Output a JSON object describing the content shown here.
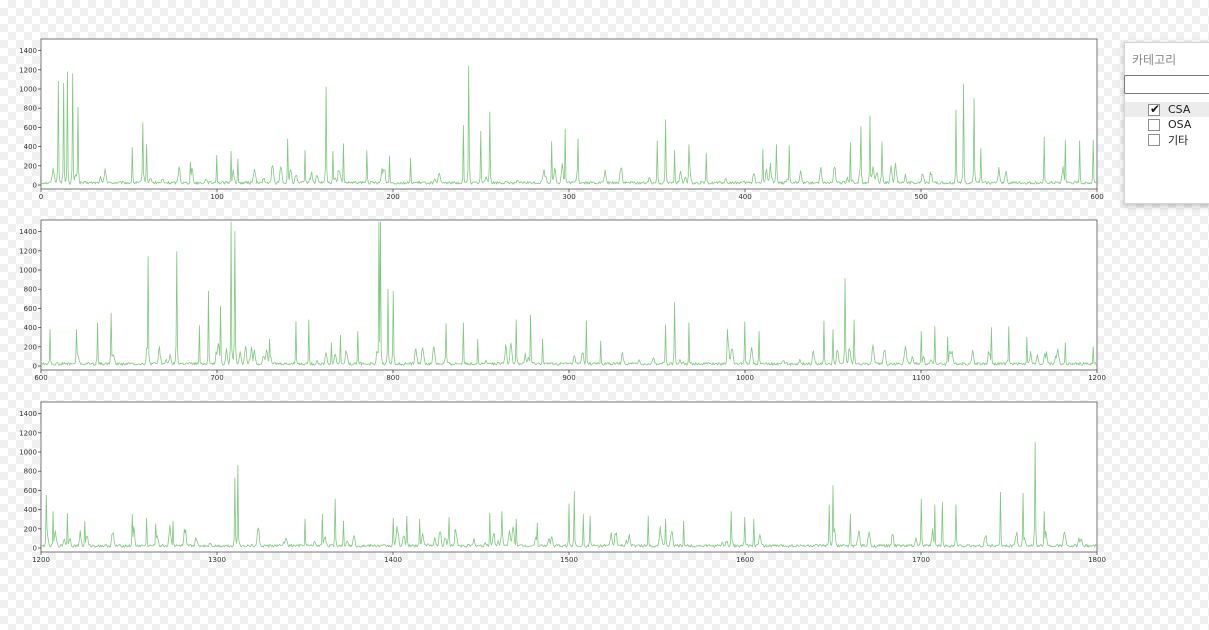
{
  "chart_data": [
    {
      "type": "line",
      "x_range": [
        0,
        600
      ],
      "ylim": [
        0,
        1500
      ],
      "xticks": [
        "0",
        "100",
        "200",
        "300",
        "400",
        "500",
        "600"
      ],
      "yticks": [
        "0",
        "200",
        "400",
        "600",
        "800",
        "1000",
        "1200",
        "1400"
      ],
      "line_color": "#7fc97f",
      "peaks": [
        [
          10,
          1080
        ],
        [
          13,
          1060
        ],
        [
          15,
          1180
        ],
        [
          18,
          1160
        ],
        [
          21,
          810
        ],
        [
          52,
          390
        ],
        [
          58,
          650
        ],
        [
          60,
          420
        ],
        [
          85,
          240
        ],
        [
          100,
          310
        ],
        [
          108,
          350
        ],
        [
          112,
          270
        ],
        [
          140,
          480
        ],
        [
          150,
          360
        ],
        [
          162,
          1020
        ],
        [
          166,
          350
        ],
        [
          172,
          430
        ],
        [
          185,
          360
        ],
        [
          198,
          300
        ],
        [
          210,
          280
        ],
        [
          240,
          620
        ],
        [
          243,
          1240
        ],
        [
          250,
          560
        ],
        [
          255,
          760
        ],
        [
          290,
          450
        ],
        [
          298,
          580
        ],
        [
          305,
          480
        ],
        [
          350,
          460
        ],
        [
          355,
          680
        ],
        [
          360,
          360
        ],
        [
          368,
          420
        ],
        [
          378,
          330
        ],
        [
          410,
          370
        ],
        [
          418,
          420
        ],
        [
          425,
          410
        ],
        [
          460,
          440
        ],
        [
          466,
          610
        ],
        [
          471,
          720
        ],
        [
          478,
          450
        ],
        [
          520,
          780
        ],
        [
          524,
          1050
        ],
        [
          530,
          900
        ],
        [
          534,
          380
        ],
        [
          570,
          500
        ],
        [
          582,
          470
        ],
        [
          590,
          460
        ],
        [
          598,
          470
        ]
      ]
    },
    {
      "type": "line",
      "x_range": [
        600,
        1200
      ],
      "ylim": [
        0,
        1500
      ],
      "xticks": [
        "600",
        "700",
        "800",
        "900",
        "1000",
        "1100",
        "1200"
      ],
      "yticks": [
        "0",
        "200",
        "400",
        "600",
        "800",
        "1000",
        "1200",
        "1400"
      ],
      "line_color": "#7fc97f",
      "peaks": [
        [
          605,
          380
        ],
        [
          620,
          380
        ],
        [
          632,
          450
        ],
        [
          640,
          550
        ],
        [
          661,
          1140
        ],
        [
          677,
          1190
        ],
        [
          690,
          420
        ],
        [
          695,
          780
        ],
        [
          702,
          620
        ],
        [
          708,
          1500
        ],
        [
          710,
          1400
        ],
        [
          730,
          280
        ],
        [
          745,
          460
        ],
        [
          752,
          480
        ],
        [
          765,
          240
        ],
        [
          770,
          320
        ],
        [
          780,
          360
        ],
        [
          792,
          1500
        ],
        [
          793,
          1500
        ],
        [
          797,
          800
        ],
        [
          800,
          780
        ],
        [
          830,
          440
        ],
        [
          840,
          450
        ],
        [
          848,
          280
        ],
        [
          870,
          480
        ],
        [
          878,
          530
        ],
        [
          885,
          280
        ],
        [
          910,
          470
        ],
        [
          918,
          260
        ],
        [
          955,
          430
        ],
        [
          960,
          660
        ],
        [
          968,
          450
        ],
        [
          990,
          380
        ],
        [
          1000,
          460
        ],
        [
          1008,
          360
        ],
        [
          1045,
          470
        ],
        [
          1050,
          380
        ],
        [
          1057,
          910
        ],
        [
          1062,
          480
        ],
        [
          1100,
          360
        ],
        [
          1108,
          410
        ],
        [
          1115,
          300
        ],
        [
          1140,
          400
        ],
        [
          1150,
          410
        ],
        [
          1160,
          300
        ],
        [
          1182,
          240
        ],
        [
          1198,
          200
        ]
      ]
    },
    {
      "type": "line",
      "x_range": [
        1200,
        1800
      ],
      "ylim": [
        0,
        1500
      ],
      "xticks": [
        "1200",
        "1300",
        "1400",
        "1500",
        "1600",
        "1700",
        "1800"
      ],
      "yticks": [
        "0",
        "200",
        "400",
        "600",
        "800",
        "1000",
        "1200",
        "1400"
      ],
      "line_color": "#7fc97f",
      "peaks": [
        [
          1203,
          550
        ],
        [
          1207,
          380
        ],
        [
          1215,
          360
        ],
        [
          1225,
          280
        ],
        [
          1252,
          350
        ],
        [
          1260,
          310
        ],
        [
          1265,
          250
        ],
        [
          1275,
          280
        ],
        [
          1310,
          730
        ],
        [
          1312,
          860
        ],
        [
          1350,
          300
        ],
        [
          1360,
          350
        ],
        [
          1367,
          510
        ],
        [
          1372,
          280
        ],
        [
          1400,
          310
        ],
        [
          1408,
          330
        ],
        [
          1415,
          300
        ],
        [
          1432,
          320
        ],
        [
          1455,
          360
        ],
        [
          1462,
          380
        ],
        [
          1470,
          300
        ],
        [
          1482,
          260
        ],
        [
          1500,
          460
        ],
        [
          1503,
          590
        ],
        [
          1508,
          350
        ],
        [
          1512,
          330
        ],
        [
          1545,
          330
        ],
        [
          1555,
          300
        ],
        [
          1565,
          280
        ],
        [
          1592,
          380
        ],
        [
          1600,
          320
        ],
        [
          1605,
          300
        ],
        [
          1648,
          450
        ],
        [
          1650,
          650
        ],
        [
          1660,
          350
        ],
        [
          1700,
          510
        ],
        [
          1708,
          450
        ],
        [
          1712,
          480
        ],
        [
          1720,
          450
        ],
        [
          1745,
          580
        ],
        [
          1758,
          570
        ],
        [
          1765,
          1100
        ],
        [
          1770,
          380
        ]
      ]
    }
  ],
  "legend_panel": {
    "title": "카테고리",
    "filter_value": "",
    "items": [
      {
        "label": "CSA",
        "checked": true
      },
      {
        "label": "OSA",
        "checked": false
      },
      {
        "label": "기타",
        "checked": false
      }
    ]
  }
}
